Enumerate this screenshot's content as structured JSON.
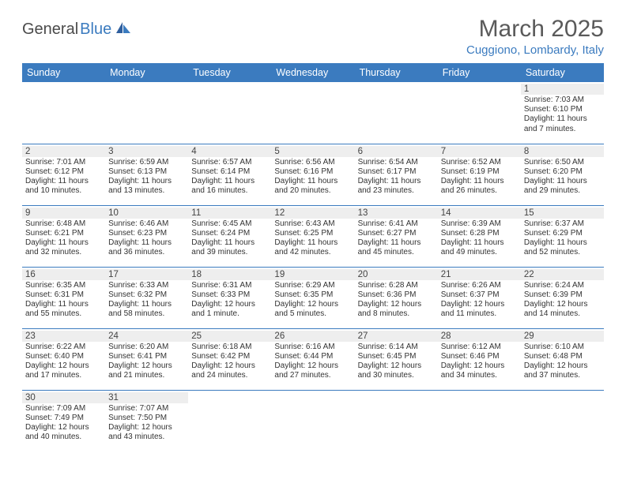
{
  "logo": {
    "text1": "General",
    "text2": "Blue"
  },
  "title": "March 2025",
  "location": "Cuggiono, Lombardy, Italy",
  "colors": {
    "header_bg": "#3b7bbf",
    "header_text": "#ffffff",
    "daynum_bg": "#eeeeee",
    "border": "#3b7bbf",
    "title_color": "#5a5a5a",
    "location_color": "#3b7bbf"
  },
  "day_headers": [
    "Sunday",
    "Monday",
    "Tuesday",
    "Wednesday",
    "Thursday",
    "Friday",
    "Saturday"
  ],
  "weeks": [
    [
      null,
      null,
      null,
      null,
      null,
      null,
      {
        "n": "1",
        "sr": "7:03 AM",
        "ss": "6:10 PM",
        "dl": "11 hours and 7 minutes."
      }
    ],
    [
      {
        "n": "2",
        "sr": "7:01 AM",
        "ss": "6:12 PM",
        "dl": "11 hours and 10 minutes."
      },
      {
        "n": "3",
        "sr": "6:59 AM",
        "ss": "6:13 PM",
        "dl": "11 hours and 13 minutes."
      },
      {
        "n": "4",
        "sr": "6:57 AM",
        "ss": "6:14 PM",
        "dl": "11 hours and 16 minutes."
      },
      {
        "n": "5",
        "sr": "6:56 AM",
        "ss": "6:16 PM",
        "dl": "11 hours and 20 minutes."
      },
      {
        "n": "6",
        "sr": "6:54 AM",
        "ss": "6:17 PM",
        "dl": "11 hours and 23 minutes."
      },
      {
        "n": "7",
        "sr": "6:52 AM",
        "ss": "6:19 PM",
        "dl": "11 hours and 26 minutes."
      },
      {
        "n": "8",
        "sr": "6:50 AM",
        "ss": "6:20 PM",
        "dl": "11 hours and 29 minutes."
      }
    ],
    [
      {
        "n": "9",
        "sr": "6:48 AM",
        "ss": "6:21 PM",
        "dl": "11 hours and 32 minutes."
      },
      {
        "n": "10",
        "sr": "6:46 AM",
        "ss": "6:23 PM",
        "dl": "11 hours and 36 minutes."
      },
      {
        "n": "11",
        "sr": "6:45 AM",
        "ss": "6:24 PM",
        "dl": "11 hours and 39 minutes."
      },
      {
        "n": "12",
        "sr": "6:43 AM",
        "ss": "6:25 PM",
        "dl": "11 hours and 42 minutes."
      },
      {
        "n": "13",
        "sr": "6:41 AM",
        "ss": "6:27 PM",
        "dl": "11 hours and 45 minutes."
      },
      {
        "n": "14",
        "sr": "6:39 AM",
        "ss": "6:28 PM",
        "dl": "11 hours and 49 minutes."
      },
      {
        "n": "15",
        "sr": "6:37 AM",
        "ss": "6:29 PM",
        "dl": "11 hours and 52 minutes."
      }
    ],
    [
      {
        "n": "16",
        "sr": "6:35 AM",
        "ss": "6:31 PM",
        "dl": "11 hours and 55 minutes."
      },
      {
        "n": "17",
        "sr": "6:33 AM",
        "ss": "6:32 PM",
        "dl": "11 hours and 58 minutes."
      },
      {
        "n": "18",
        "sr": "6:31 AM",
        "ss": "6:33 PM",
        "dl": "12 hours and 1 minute."
      },
      {
        "n": "19",
        "sr": "6:29 AM",
        "ss": "6:35 PM",
        "dl": "12 hours and 5 minutes."
      },
      {
        "n": "20",
        "sr": "6:28 AM",
        "ss": "6:36 PM",
        "dl": "12 hours and 8 minutes."
      },
      {
        "n": "21",
        "sr": "6:26 AM",
        "ss": "6:37 PM",
        "dl": "12 hours and 11 minutes."
      },
      {
        "n": "22",
        "sr": "6:24 AM",
        "ss": "6:39 PM",
        "dl": "12 hours and 14 minutes."
      }
    ],
    [
      {
        "n": "23",
        "sr": "6:22 AM",
        "ss": "6:40 PM",
        "dl": "12 hours and 17 minutes."
      },
      {
        "n": "24",
        "sr": "6:20 AM",
        "ss": "6:41 PM",
        "dl": "12 hours and 21 minutes."
      },
      {
        "n": "25",
        "sr": "6:18 AM",
        "ss": "6:42 PM",
        "dl": "12 hours and 24 minutes."
      },
      {
        "n": "26",
        "sr": "6:16 AM",
        "ss": "6:44 PM",
        "dl": "12 hours and 27 minutes."
      },
      {
        "n": "27",
        "sr": "6:14 AM",
        "ss": "6:45 PM",
        "dl": "12 hours and 30 minutes."
      },
      {
        "n": "28",
        "sr": "6:12 AM",
        "ss": "6:46 PM",
        "dl": "12 hours and 34 minutes."
      },
      {
        "n": "29",
        "sr": "6:10 AM",
        "ss": "6:48 PM",
        "dl": "12 hours and 37 minutes."
      }
    ],
    [
      {
        "n": "30",
        "sr": "7:09 AM",
        "ss": "7:49 PM",
        "dl": "12 hours and 40 minutes."
      },
      {
        "n": "31",
        "sr": "7:07 AM",
        "ss": "7:50 PM",
        "dl": "12 hours and 43 minutes."
      },
      null,
      null,
      null,
      null,
      null
    ]
  ],
  "labels": {
    "sunrise": "Sunrise: ",
    "sunset": "Sunset: ",
    "daylight": "Daylight: "
  }
}
